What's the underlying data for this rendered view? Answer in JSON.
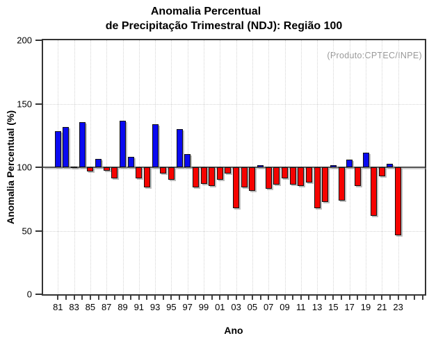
{
  "title": {
    "line1": "Anomalia Percentual",
    "line2": "de Precipitação Trimestral (NDJ): Região 100"
  },
  "annotation": "(Produto:CPTEC/INPE)",
  "axes": {
    "y_label": "Anomalia Percentual (%)",
    "x_label": "Ano",
    "y_ticks": [
      0,
      50,
      100,
      150,
      200
    ],
    "x_tick_labels": [
      "81",
      "83",
      "85",
      "87",
      "89",
      "91",
      "93",
      "95",
      "97",
      "99",
      "01",
      "03",
      "05",
      "07",
      "09",
      "11",
      "13",
      "15",
      "17",
      "19",
      "21",
      "23"
    ]
  },
  "chart_data": {
    "type": "bar",
    "title": "Anomalia Percentual de Precipitação Trimestral (NDJ): Região 100",
    "xlabel": "Ano",
    "ylabel": "Anomalia Percentual (%)",
    "ylim": [
      0,
      200
    ],
    "baseline": 100,
    "y_gridlines_dotted": [
      50,
      150
    ],
    "grid_vertical_at_labeled_years": true,
    "legend": null,
    "source_note": "(Produto:CPTEC/INPE)",
    "years": [
      1981,
      1982,
      1983,
      1984,
      1985,
      1986,
      1987,
      1988,
      1989,
      1990,
      1991,
      1992,
      1993,
      1994,
      1995,
      1996,
      1997,
      1998,
      1999,
      2000,
      2001,
      2002,
      2003,
      2004,
      2005,
      2006,
      2007,
      2008,
      2009,
      2010,
      2011,
      2012,
      2013,
      2014,
      2015,
      2016,
      2017,
      2018,
      2019,
      2020,
      2021,
      2022,
      2023
    ],
    "values": [
      128.5,
      131.5,
      100.8,
      135.5,
      96.5,
      106.5,
      97,
      91,
      136.5,
      108,
      91.5,
      84,
      134,
      95,
      90,
      130,
      110.5,
      84,
      87,
      85,
      90,
      95,
      68,
      84,
      81.5,
      101.5,
      83,
      86.5,
      91,
      86.5,
      85,
      88,
      68,
      72.5,
      101.5,
      74,
      106,
      85,
      111.5,
      62,
      93,
      103,
      46.5
    ],
    "colors": {
      "above_baseline": "#0a0af0",
      "below_baseline": "#f50300",
      "bar_border": "#111111",
      "shadow": "#919191",
      "grid": "#d4d4d4",
      "axis": "#333333",
      "annotation": "#999999"
    }
  }
}
